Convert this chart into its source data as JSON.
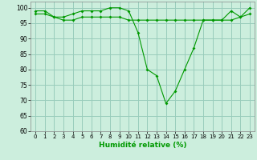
{
  "xlabel": "Humidité relative (%)",
  "background_color": "#cceedd",
  "grid_color": "#99ccbb",
  "line_color": "#009900",
  "marker_color": "#009900",
  "xlim": [
    -0.5,
    23.5
  ],
  "ylim": [
    60,
    102
  ],
  "yticks": [
    60,
    65,
    70,
    75,
    80,
    85,
    90,
    95,
    100
  ],
  "xticks": [
    0,
    1,
    2,
    3,
    4,
    5,
    6,
    7,
    8,
    9,
    10,
    11,
    12,
    13,
    14,
    15,
    16,
    17,
    18,
    19,
    20,
    21,
    22,
    23
  ],
  "series1": [
    99,
    99,
    97,
    97,
    98,
    99,
    99,
    99,
    100,
    100,
    99,
    92,
    80,
    78,
    69,
    73,
    80,
    87,
    96,
    96,
    96,
    99,
    97,
    100
  ],
  "series2": [
    98,
    98,
    97,
    96,
    96,
    97,
    97,
    97,
    97,
    97,
    96,
    96,
    96,
    96,
    96,
    96,
    96,
    96,
    96,
    96,
    96,
    96,
    97,
    98
  ]
}
